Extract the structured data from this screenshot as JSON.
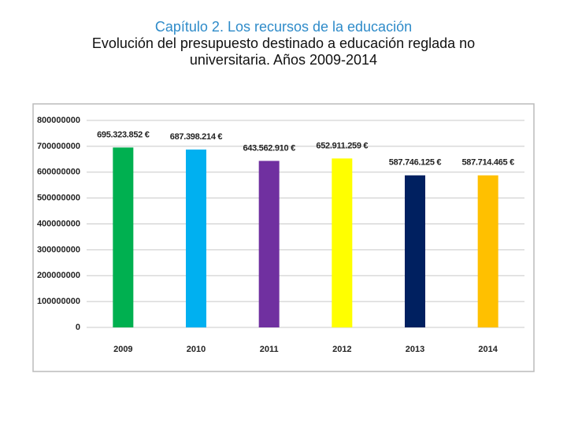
{
  "chart_data": {
    "type": "bar",
    "title": "Capítulo 2. Los recursos de la educación",
    "subtitle": "Evolución del presupuesto destinado a educación reglada no universitaria. Años 2009-2014",
    "categories": [
      "2009",
      "2010",
      "2011",
      "2012",
      "2013",
      "2014"
    ],
    "values": [
      695323852,
      687398214,
      643562910,
      652911259,
      587746125,
      587714465
    ],
    "value_labels": [
      "695.323.852 €",
      "687.398.214 €",
      "643.562.910 €",
      "652.911.259 €",
      "587.746.125 €",
      "587.714.465 €"
    ],
    "colors": [
      "#00b050",
      "#00b0f0",
      "#7030a0",
      "#ffff00",
      "#002060",
      "#ffc000"
    ],
    "ylim": [
      0,
      800000000
    ],
    "yticks": [
      0,
      100000000,
      200000000,
      300000000,
      400000000,
      500000000,
      600000000,
      700000000,
      800000000
    ],
    "grid": true
  }
}
